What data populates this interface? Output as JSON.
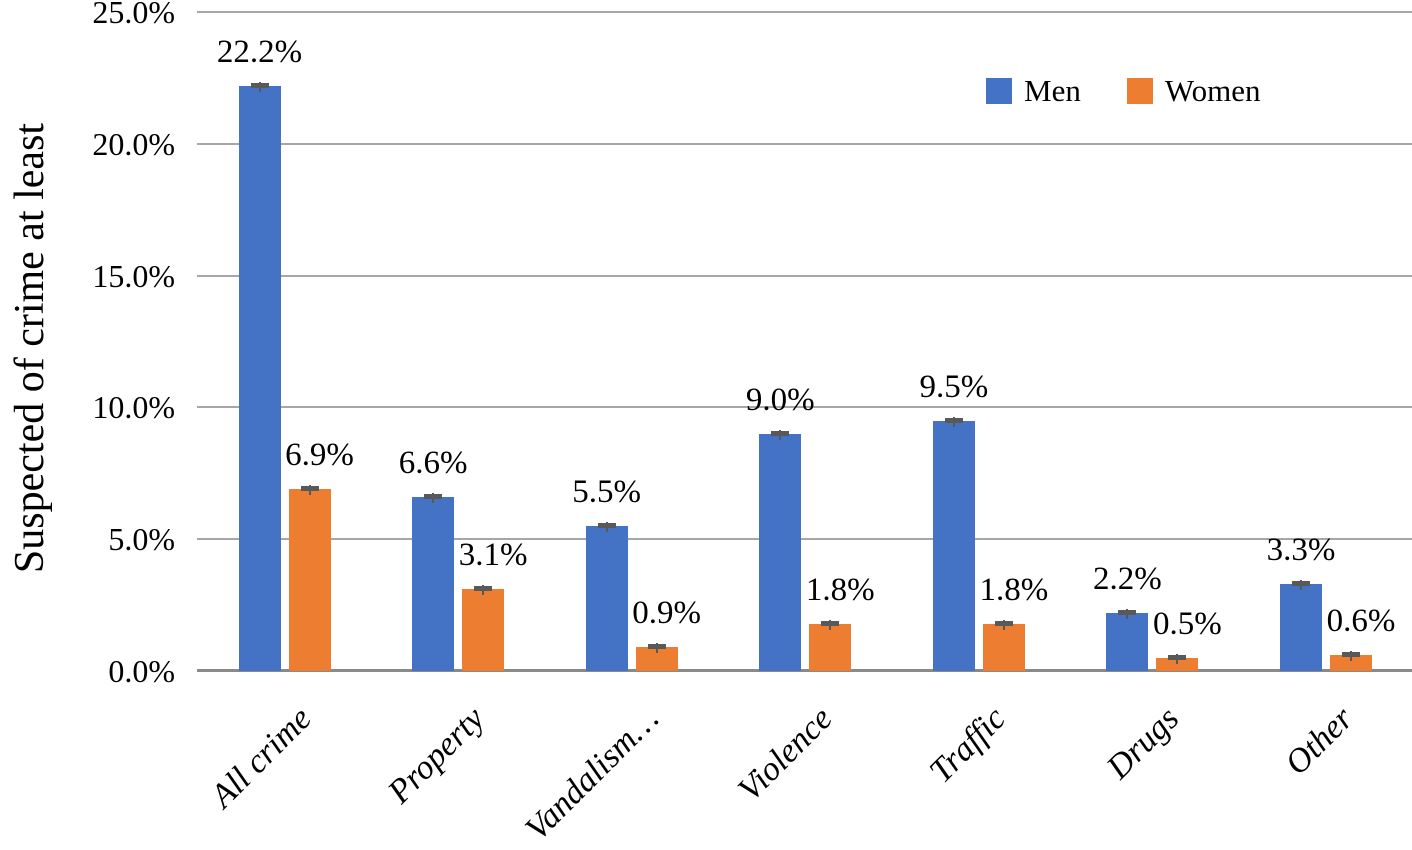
{
  "chart_data": {
    "type": "bar",
    "title": "",
    "xlabel": "",
    "ylabel": "Suspected of crime at least",
    "categories": [
      "All crime",
      "Property",
      "Vandalism…",
      "Violence",
      "Traffic",
      "Drugs",
      "Other"
    ],
    "series": [
      {
        "name": "Men",
        "color": "#4472C4",
        "values": [
          22.2,
          6.6,
          5.5,
          9.0,
          9.5,
          2.2,
          3.3
        ],
        "value_labels": [
          "22.2%",
          "6.6%",
          "5.5%",
          "9.0%",
          "9.5%",
          "2.2%",
          "3.3%"
        ]
      },
      {
        "name": "Women",
        "color": "#ED7D31",
        "values": [
          6.9,
          3.1,
          0.9,
          1.8,
          1.8,
          0.5,
          0.6
        ],
        "value_labels": [
          "6.9%",
          "3.1%",
          "0.9%",
          "1.8%",
          "1.8%",
          "0.5%",
          "0.6%"
        ]
      }
    ],
    "y_ticks": [
      {
        "v": 25,
        "label": "25.0%"
      },
      {
        "v": 20,
        "label": "20.0%"
      },
      {
        "v": 15,
        "label": "15.0%"
      },
      {
        "v": 10,
        "label": "10.0%"
      },
      {
        "v": 5,
        "label": "5.0%"
      },
      {
        "v": 0,
        "label": "0.0%"
      }
    ],
    "ylim": [
      0,
      25
    ],
    "grid": true,
    "legend_position": "top-right",
    "error_bars": true
  },
  "colors": {
    "men": "#4472C4",
    "women": "#ED7D31",
    "gridline": "#A6A6A6",
    "axis_line": "#8A8A8A",
    "error_bar": "#595959",
    "text": "#000000",
    "background": "#FFFFFF"
  }
}
